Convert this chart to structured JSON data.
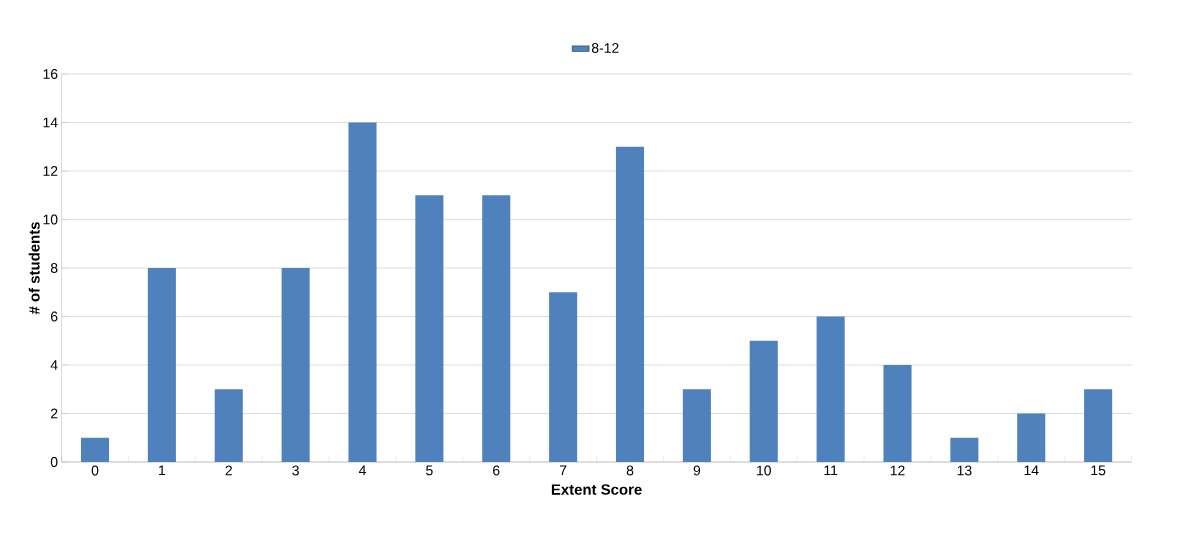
{
  "chart_data": {
    "type": "bar",
    "xlabel": "Extent Score",
    "ylabel": "# of students",
    "categories": [
      "0",
      "1",
      "2",
      "3",
      "4",
      "5",
      "6",
      "7",
      "8",
      "9",
      "10",
      "11",
      "12",
      "13",
      "14",
      "15"
    ],
    "series": [
      {
        "name": "8-12",
        "color": "#4f81bd",
        "values": [
          1,
          8,
          3,
          8,
          14,
          11,
          11,
          7,
          13,
          3,
          5,
          6,
          4,
          1,
          2,
          3
        ]
      }
    ],
    "ylim": [
      0,
      16
    ],
    "yticks": [
      0,
      2,
      4,
      6,
      8,
      10,
      12,
      14,
      16
    ],
    "grid": "y",
    "legend": "top"
  }
}
